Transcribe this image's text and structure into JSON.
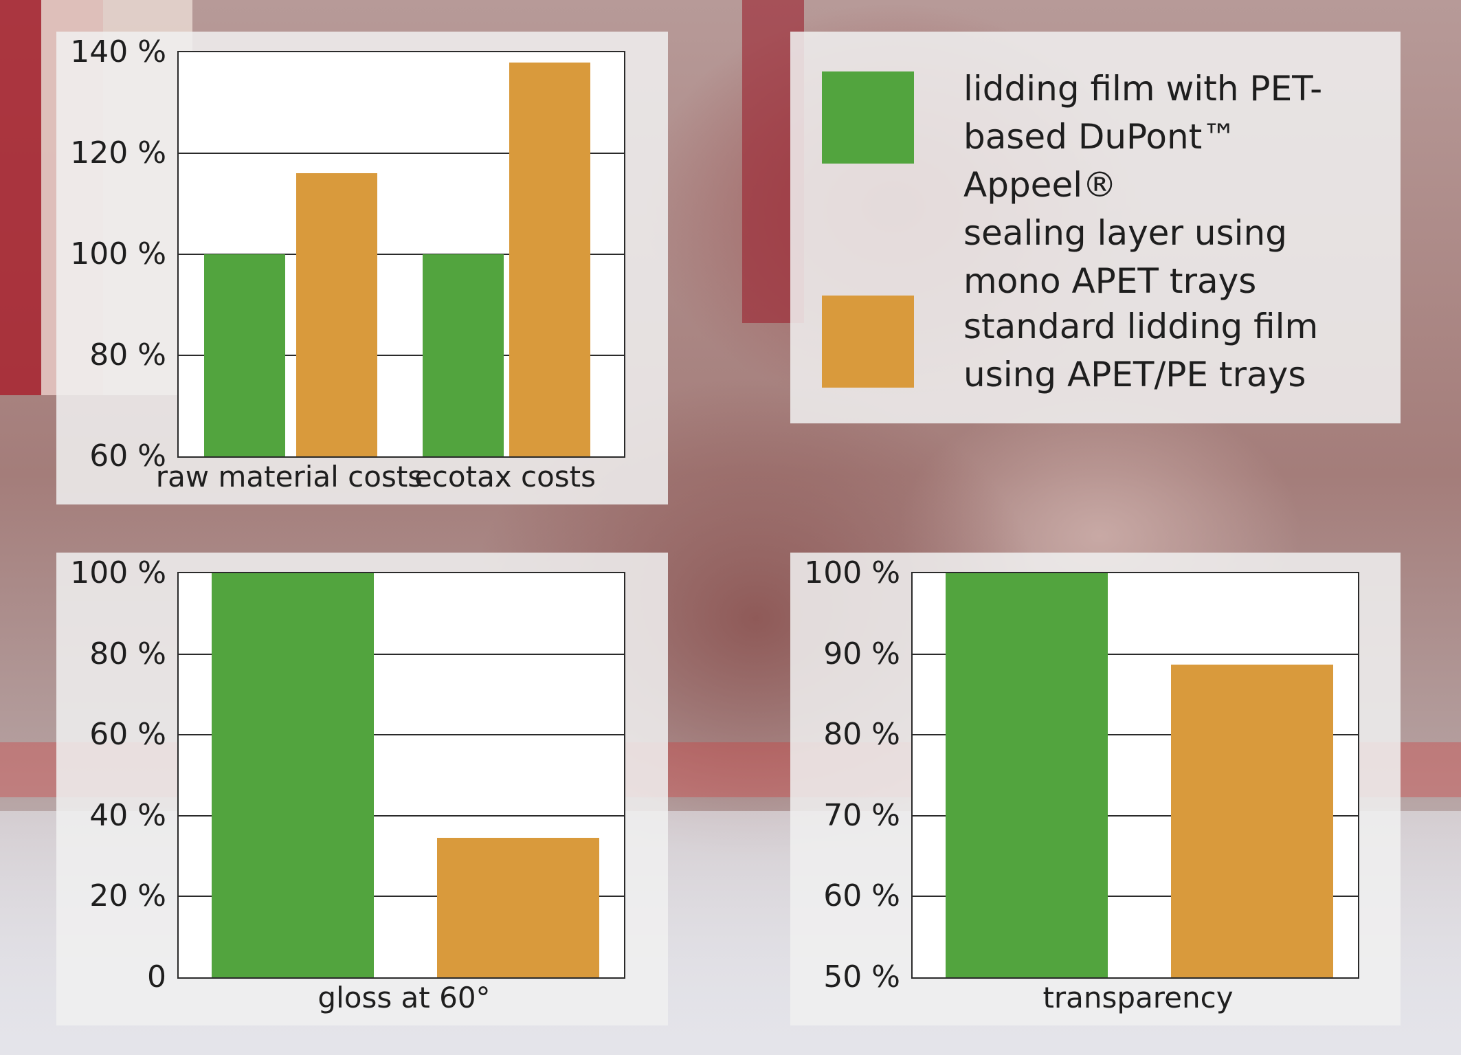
{
  "colors": {
    "series1": "#52a43e",
    "series2": "#d99a3c"
  },
  "legend": {
    "series1_label": "lidding film with PET-\nbased DuPont™ Appeel®\nsealing layer using\nmono APET trays",
    "series2_label": "standard lidding film\nusing APET/PE trays"
  },
  "chart_data": [
    {
      "type": "bar",
      "categories": [
        "raw material costs",
        "ecotax costs"
      ],
      "series": [
        {
          "name": "lidding film with PET-based DuPont™ Appeel® sealing layer using mono APET trays",
          "values": [
            100,
            100
          ]
        },
        {
          "name": "standard lidding film using APET/PE trays",
          "values": [
            116,
            138
          ]
        }
      ],
      "yticks": [
        "60 %",
        "80 %",
        "100 %",
        "120 %",
        "140 %"
      ],
      "ylim": [
        60,
        140
      ],
      "grid": true,
      "legend_position": "right"
    },
    {
      "type": "bar",
      "categories": [
        "gloss at 60°"
      ],
      "series": [
        {
          "name": "lidding film with PET-based DuPont™ Appeel® sealing layer using mono APET trays",
          "values": [
            100
          ]
        },
        {
          "name": "standard lidding film using APET/PE trays",
          "values": [
            34.5
          ]
        }
      ],
      "yticks": [
        "0",
        "20 %",
        "40 %",
        "60 %",
        "80 %",
        "100 %"
      ],
      "ylim": [
        0,
        100
      ],
      "grid": true
    },
    {
      "type": "bar",
      "categories": [
        "transparency"
      ],
      "series": [
        {
          "name": "lidding film with PET-based DuPont™ Appeel® sealing layer using mono APET trays",
          "values": [
            100
          ]
        },
        {
          "name": "standard lidding film using APET/PE trays",
          "values": [
            88.7
          ]
        }
      ],
      "yticks": [
        "50 %",
        "60 %",
        "70 %",
        "80 %",
        "90 %",
        "100 %"
      ],
      "ylim": [
        50,
        100
      ],
      "grid": true
    }
  ]
}
